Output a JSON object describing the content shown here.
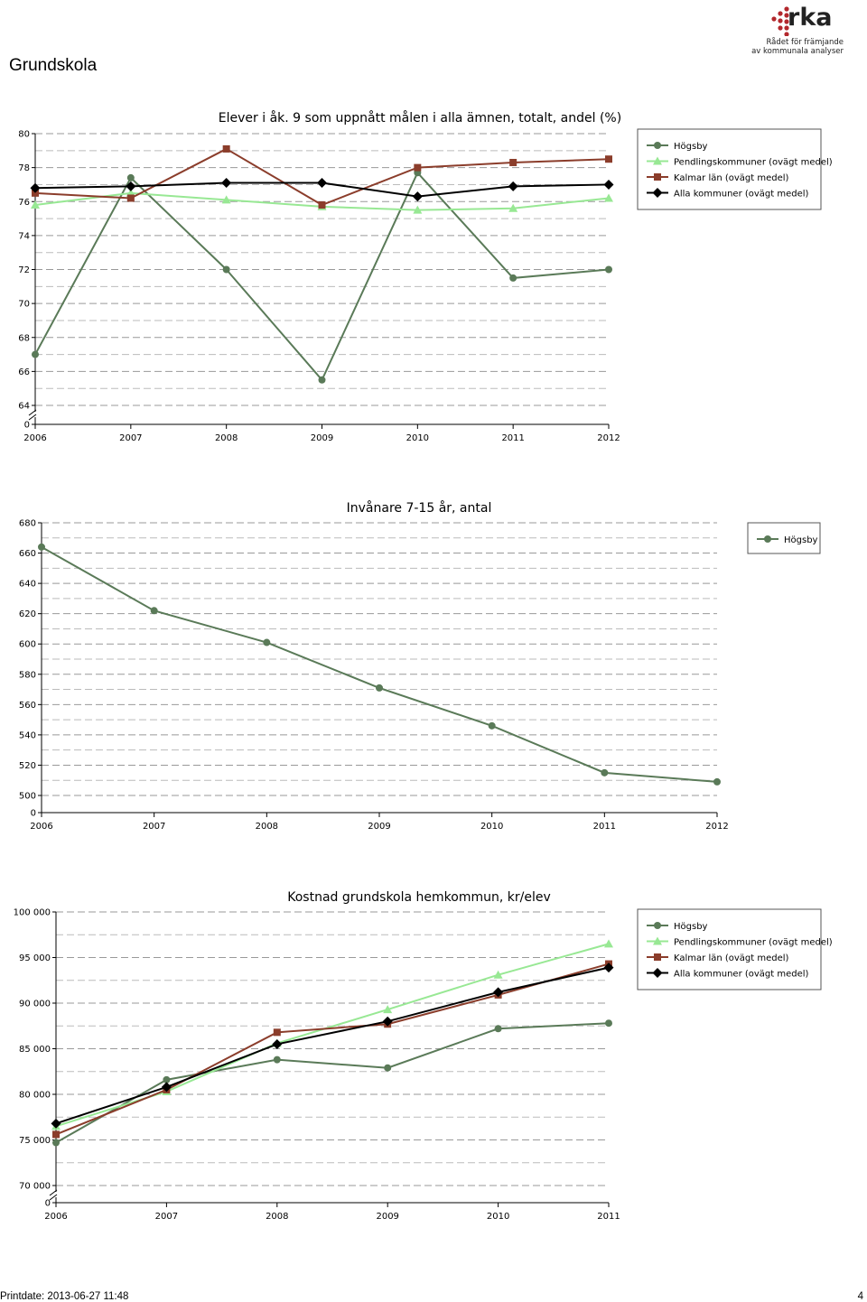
{
  "page": {
    "title": "Grundskola",
    "logo": {
      "wordmark": "rka",
      "tagline_1": "Rådet för främjande",
      "tagline_2": "av kommunala analyser"
    },
    "footer": {
      "printdate": "Printdate: 2013-06-27 11:48",
      "page_number": "4"
    }
  },
  "colors": {
    "hogsby": "#5a7a58",
    "pendling": "#98e894",
    "kalmar": "#8b3d2b",
    "alla": "#000000"
  },
  "chart_data": [
    {
      "type": "line",
      "title": "Elever i åk. 9 som uppnått målen i alla ämnen, totalt, andel (%)",
      "xlabel": "",
      "ylabel": "",
      "x": [
        "2006",
        "2007",
        "2008",
        "2009",
        "2010",
        "2011",
        "2012"
      ],
      "y_ticks": [
        "80",
        "78",
        "76",
        "74",
        "72",
        "70",
        "68",
        "66",
        "64"
      ],
      "y_zero_label": "0",
      "ylim": [
        64,
        80
      ],
      "axis_break": true,
      "grid": true,
      "legend_position": "top-right",
      "series": [
        {
          "name": "Högsby",
          "marker": "circle",
          "values": [
            67.0,
            77.4,
            72.0,
            65.5,
            77.7,
            71.5,
            72.0
          ]
        },
        {
          "name": "Pendlingskommuner (ovägt medel)",
          "marker": "triangle",
          "values": [
            75.8,
            76.5,
            76.1,
            75.7,
            75.5,
            75.6,
            76.2
          ]
        },
        {
          "name": "Kalmar län (ovägt medel)",
          "marker": "square",
          "values": [
            76.5,
            76.2,
            79.1,
            75.8,
            78.0,
            78.3,
            78.5
          ]
        },
        {
          "name": "Alla kommuner (ovägt medel)",
          "marker": "diamond",
          "values": [
            76.8,
            76.9,
            77.1,
            77.1,
            76.3,
            76.9,
            77.0
          ]
        }
      ]
    },
    {
      "type": "line",
      "title": "Invånare 7-15 år, antal",
      "xlabel": "",
      "ylabel": "",
      "x": [
        "2006",
        "2007",
        "2008",
        "2009",
        "2010",
        "2011",
        "2012"
      ],
      "y_ticks": [
        "680",
        "660",
        "640",
        "620",
        "600",
        "580",
        "560",
        "540",
        "520",
        "500"
      ],
      "y_zero_label": "0",
      "ylim": [
        500,
        680
      ],
      "axis_break": false,
      "grid": true,
      "legend_position": "top-right",
      "series": [
        {
          "name": "Högsby",
          "marker": "circle",
          "values": [
            664,
            622,
            601,
            571,
            546,
            515,
            509
          ]
        }
      ]
    },
    {
      "type": "line",
      "title": "Kostnad grundskola hemkommun, kr/elev",
      "xlabel": "",
      "ylabel": "",
      "x": [
        "2006",
        "2007",
        "2008",
        "2009",
        "2010",
        "2011"
      ],
      "y_ticks": [
        "100 000",
        "95 000",
        "90 000",
        "85 000",
        "80 000",
        "75 000",
        "70 000"
      ],
      "y_zero_label": "0",
      "ylim": [
        70000,
        100000
      ],
      "axis_break": true,
      "grid": true,
      "legend_position": "top-right",
      "series": [
        {
          "name": "Högsby",
          "marker": "circle",
          "values": [
            74700,
            81600,
            83800,
            82900,
            87200,
            87800
          ]
        },
        {
          "name": "Pendlingskommuner (ovägt medel)",
          "marker": "triangle",
          "values": [
            76500,
            80300,
            85600,
            89300,
            93100,
            96500
          ]
        },
        {
          "name": "Kalmar län (ovägt medel)",
          "marker": "square",
          "values": [
            75600,
            80500,
            86800,
            87700,
            90900,
            94300
          ]
        },
        {
          "name": "Alla kommuner (ovägt medel)",
          "marker": "diamond",
          "values": [
            76800,
            80800,
            85500,
            88000,
            91200,
            93900
          ]
        }
      ]
    }
  ]
}
